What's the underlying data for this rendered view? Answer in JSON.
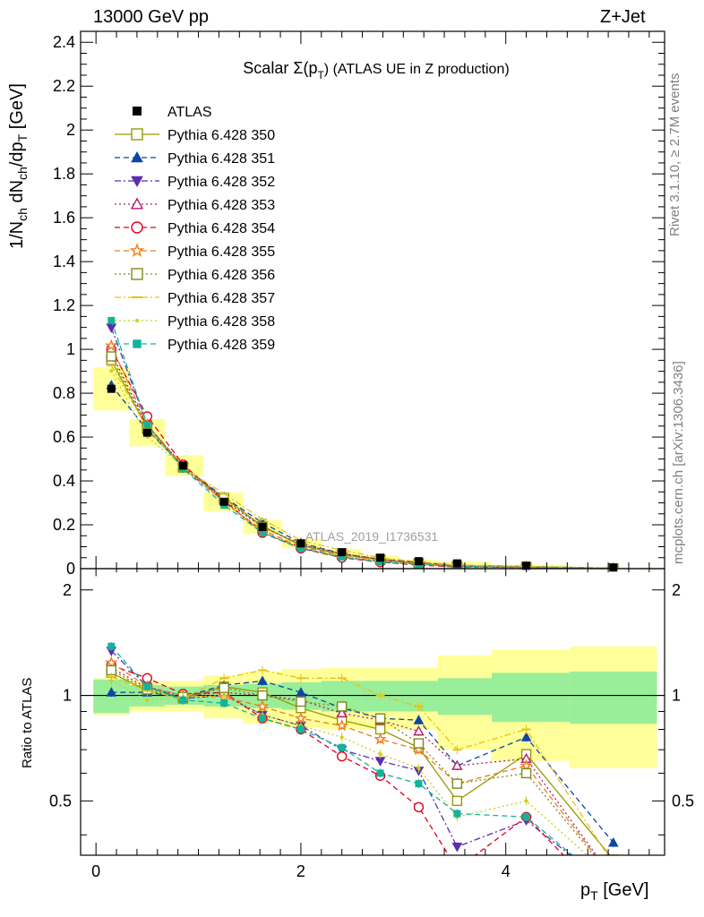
{
  "header": {
    "left": "13000 GeV pp",
    "right": "Z+Jet"
  },
  "side_text": {
    "top": "Rivet 3.1.10, ≥ 2.7M events",
    "bottom": "mcplots.cern.ch [arXiv:1306.3436]"
  },
  "chart_data": {
    "type": "line",
    "title": "Scalar Σ(p_T) (ATLAS UE in Z production)",
    "title_main": "Scalar Σ(p",
    "title_sub": "T",
    "title_end": ") (ATLAS UE in Z production)",
    "ylabel": "1/N_ch dN_ch/dp_T [GeV]",
    "ylabel_parts": [
      "1/N",
      "ch",
      " dN",
      "ch",
      "/dp",
      "T",
      " [GeV]"
    ],
    "xlabel": "p_T [GeV]",
    "xlabel_main": "p",
    "xlabel_sub": "T",
    "xlabel_end": " [GeV]",
    "ratio_label": "Ratio to ATLAS",
    "watermark": "ATLAS_2019_I1736531",
    "xlim": [
      -0.15,
      5.55
    ],
    "ylim": [
      0,
      2.45
    ],
    "ratio_ylim": [
      0.35,
      2.3
    ],
    "ratio_scale": "log",
    "x_ticks": [
      "0",
      "2",
      "4"
    ],
    "y_ticks": [
      "0",
      "0.2",
      "0.4",
      "0.6",
      "0.8",
      "1",
      "1.2",
      "1.4",
      "1.6",
      "1.8",
      "2",
      "2.2",
      "2.4"
    ],
    "ratio_ticks": [
      "0.5",
      "1",
      "2"
    ],
    "legend_position": "top-left",
    "x": [
      0.15,
      0.5,
      0.85,
      1.25,
      1.625,
      2.0,
      2.4,
      2.775,
      3.15,
      3.525,
      4.2,
      5.05
    ],
    "data": {
      "name": "ATLAS",
      "values": [
        0.82,
        0.62,
        0.47,
        0.305,
        0.19,
        0.115,
        0.075,
        0.05,
        0.034,
        0.024,
        0.013,
        0.005
      ],
      "band_inner": [
        0.11,
        0.07,
        0.06,
        0.07,
        0.08,
        0.09,
        0.1,
        0.1,
        0.1,
        0.12,
        0.16,
        0.17
      ],
      "band_outer": [
        0.12,
        0.1,
        0.1,
        0.14,
        0.17,
        0.19,
        0.2,
        0.2,
        0.2,
        0.3,
        0.35,
        0.38
      ]
    },
    "series": [
      {
        "name": "Pythia 6.428 350",
        "color": "#999900",
        "marker": "square-open",
        "dash": "solid",
        "ratio": [
          1.16,
          1.03,
          0.98,
          1.06,
          1.02,
          0.92,
          0.85,
          0.8,
          0.71,
          0.5,
          0.68,
          0.34
        ]
      },
      {
        "name": "Pythia 6.428 351",
        "color": "#0d47a1",
        "marker": "triangle-up",
        "dash": "dash",
        "ratio": [
          1.02,
          1.02,
          0.99,
          1.07,
          1.1,
          1.02,
          0.92,
          0.86,
          0.85,
          0.63,
          0.76,
          0.38
        ]
      },
      {
        "name": "Pythia 6.428 352",
        "color": "#5b2db0",
        "marker": "triangle-down",
        "dash": "dashdot",
        "ratio": [
          1.34,
          1.06,
          0.98,
          1.0,
          0.88,
          0.82,
          0.7,
          0.65,
          0.61,
          0.37,
          0.44,
          0.28
        ]
      },
      {
        "name": "Pythia 6.428 353",
        "color": "#b5196b",
        "marker": "triangle-open",
        "dash": "dot",
        "ratio": [
          1.2,
          1.05,
          1.0,
          1.02,
          1.0,
          0.97,
          0.89,
          0.85,
          0.79,
          0.63,
          0.66,
          0.3
        ]
      },
      {
        "name": "Pythia 6.428 354",
        "color": "#e3001a",
        "marker": "circle-open",
        "dash": "dash",
        "ratio": [
          1.22,
          1.12,
          1.01,
          1.02,
          0.86,
          0.8,
          0.67,
          0.59,
          0.48,
          0.32,
          0.45,
          0.25
        ]
      },
      {
        "name": "Pythia 6.428 355",
        "color": "#f07c1a",
        "marker": "star-open",
        "dash": "dash",
        "ratio": [
          1.24,
          1.06,
          1.0,
          0.99,
          0.93,
          0.86,
          0.82,
          0.75,
          0.7,
          0.56,
          0.63,
          0.3
        ]
      },
      {
        "name": "Pythia 6.428 356",
        "color": "#7f8a1a",
        "marker": "square-open",
        "dash": "dot",
        "ratio": [
          1.18,
          1.04,
          0.99,
          1.05,
          1.0,
          0.96,
          0.93,
          0.86,
          0.73,
          0.56,
          0.6,
          0.3
        ]
      },
      {
        "name": "Pythia 6.428 357",
        "color": "#e3c21a",
        "marker": "dash-mark",
        "dash": "dashdot",
        "ratio": [
          1.13,
          1.03,
          0.98,
          1.12,
          1.18,
          1.12,
          1.12,
          1.0,
          0.93,
          0.7,
          0.8,
          0.33
        ]
      },
      {
        "name": "Pythia 6.428 358",
        "color": "#c5d21a",
        "marker": "dot",
        "dash": "dot",
        "ratio": [
          1.1,
          0.97,
          0.99,
          1.0,
          0.88,
          0.82,
          0.76,
          0.68,
          0.62,
          0.45,
          0.5,
          0.3
        ]
      },
      {
        "name": "Pythia 6.428 359",
        "color": "#12b39a",
        "marker": "square-filled",
        "dash": "dash",
        "ratio": [
          1.38,
          1.06,
          0.97,
          0.95,
          0.86,
          0.8,
          0.71,
          0.6,
          0.56,
          0.46,
          0.45,
          0.28
        ]
      }
    ]
  }
}
